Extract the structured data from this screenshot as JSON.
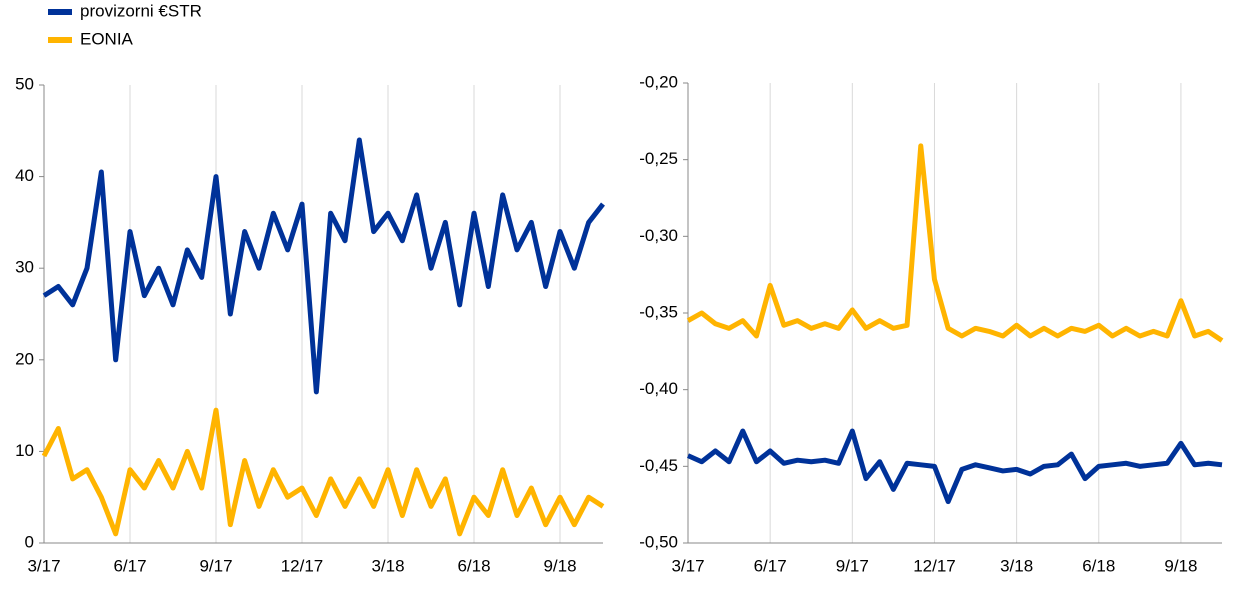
{
  "chart_data": [
    {
      "type": "line",
      "legend": "top-left",
      "grid": "x",
      "x": [
        0,
        0.5,
        1,
        1.5,
        2,
        2.5,
        3,
        3.5,
        4,
        4.5,
        5,
        5.5,
        6,
        6.5,
        7,
        7.5,
        8,
        8.5,
        9,
        9.5,
        10,
        10.5,
        11,
        11.5,
        12,
        12.5,
        13,
        13.5,
        14,
        14.5,
        15,
        15.5,
        16,
        16.5,
        17,
        17.5,
        18,
        18.5,
        19,
        19.5
      ],
      "xlim": [
        0,
        19.5
      ],
      "xticks": [
        {
          "value": 0,
          "label": "3/17"
        },
        {
          "value": 3,
          "label": "6/17"
        },
        {
          "value": 6,
          "label": "9/17"
        },
        {
          "value": 9,
          "label": "12/17"
        },
        {
          "value": 12,
          "label": "3/18"
        },
        {
          "value": 15,
          "label": "6/18"
        },
        {
          "value": 18,
          "label": "9/18"
        }
      ],
      "ylim": [
        0,
        50
      ],
      "yticks": [
        0,
        10,
        20,
        30,
        40,
        50
      ],
      "series": [
        {
          "name": "provizorni €STR",
          "color": "#003299",
          "values": [
            27,
            28,
            26,
            30,
            40.5,
            20,
            34,
            27,
            30,
            26,
            32,
            29,
            40,
            25,
            34,
            30,
            36,
            32,
            37,
            16.5,
            36,
            33,
            44,
            34,
            36,
            33,
            38,
            30,
            35,
            26,
            36,
            28,
            38,
            32,
            35,
            28,
            34,
            30,
            35,
            37
          ]
        },
        {
          "name": "EONIA",
          "color": "#ffb400",
          "values": [
            9.5,
            12.5,
            7,
            8,
            5,
            1,
            8,
            6,
            9,
            6,
            10,
            6,
            14.5,
            2,
            9,
            4,
            8,
            5,
            6,
            3,
            7,
            4,
            7,
            4,
            8,
            3,
            8,
            4,
            7,
            1,
            5,
            3,
            8,
            3,
            6,
            2,
            5,
            2,
            5,
            4
          ]
        }
      ]
    },
    {
      "type": "line",
      "grid": "x",
      "x": [
        0,
        0.5,
        1,
        1.5,
        2,
        2.5,
        3,
        3.5,
        4,
        4.5,
        5,
        5.5,
        6,
        6.5,
        7,
        7.5,
        8,
        8.5,
        9,
        9.5,
        10,
        10.5,
        11,
        11.5,
        12,
        12.5,
        13,
        13.5,
        14,
        14.5,
        15,
        15.5,
        16,
        16.5,
        17,
        17.5,
        18,
        18.5,
        19,
        19.5
      ],
      "xlim": [
        0,
        19.5
      ],
      "xticks": [
        {
          "value": 0,
          "label": "3/17"
        },
        {
          "value": 3,
          "label": "6/17"
        },
        {
          "value": 6,
          "label": "9/17"
        },
        {
          "value": 9,
          "label": "12/17"
        },
        {
          "value": 12,
          "label": "3/18"
        },
        {
          "value": 15,
          "label": "6/18"
        },
        {
          "value": 18,
          "label": "9/18"
        }
      ],
      "ylim": [
        -0.5,
        -0.2
      ],
      "yticks": [
        {
          "value": -0.5,
          "label": "-0,50"
        },
        {
          "value": -0.45,
          "label": "-0,45"
        },
        {
          "value": -0.4,
          "label": "-0,40"
        },
        {
          "value": -0.35,
          "label": "-0,35"
        },
        {
          "value": -0.3,
          "label": "-0,30"
        },
        {
          "value": -0.25,
          "label": "-0,25"
        },
        {
          "value": -0.2,
          "label": "-0,20"
        }
      ],
      "series": [
        {
          "color": "#003299",
          "values": [
            -0.443,
            -0.447,
            -0.44,
            -0.447,
            -0.427,
            -0.447,
            -0.44,
            -0.448,
            -0.446,
            -0.447,
            -0.446,
            -0.448,
            -0.427,
            -0.458,
            -0.447,
            -0.465,
            -0.448,
            -0.449,
            -0.45,
            -0.473,
            -0.452,
            -0.449,
            -0.451,
            -0.453,
            -0.452,
            -0.455,
            -0.45,
            -0.449,
            -0.442,
            -0.458,
            -0.45,
            -0.449,
            -0.448,
            -0.45,
            -0.449,
            -0.448,
            -0.435,
            -0.449,
            -0.448,
            -0.449
          ]
        },
        {
          "color": "#ffb400",
          "values": [
            -0.355,
            -0.35,
            -0.357,
            -0.36,
            -0.355,
            -0.365,
            -0.332,
            -0.358,
            -0.355,
            -0.36,
            -0.357,
            -0.36,
            -0.348,
            -0.36,
            -0.355,
            -0.36,
            -0.358,
            -0.241,
            -0.328,
            -0.36,
            -0.365,
            -0.36,
            -0.362,
            -0.365,
            -0.358,
            -0.365,
            -0.36,
            -0.365,
            -0.36,
            -0.362,
            -0.358,
            -0.365,
            -0.36,
            -0.365,
            -0.362,
            -0.365,
            -0.342,
            -0.365,
            -0.362,
            -0.368
          ]
        }
      ]
    }
  ]
}
